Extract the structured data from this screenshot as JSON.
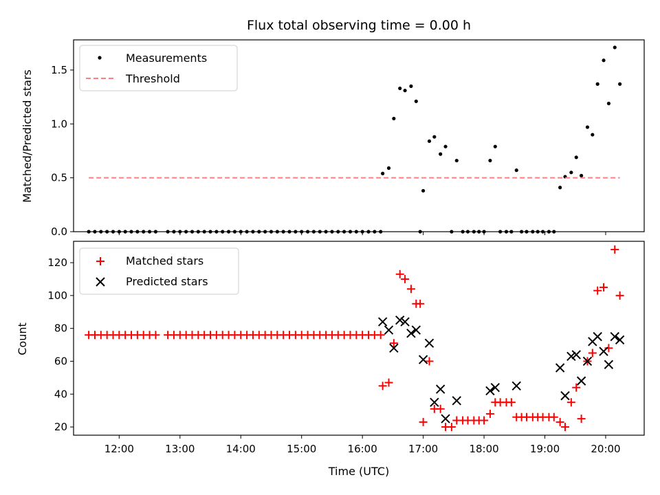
{
  "chart_data": {
    "title": "Flux total observing time = 0.00 h",
    "xlabel": "Time (UTC)",
    "x_tick_labels": [
      "12:00",
      "13:00",
      "14:00",
      "15:00",
      "16:00",
      "17:00",
      "18:00",
      "19:00",
      "20:00"
    ],
    "xlim": [
      "11:15",
      "20:38"
    ],
    "panels": [
      {
        "type": "scatter",
        "ylabel": "Matched/Predicted stars",
        "ylim": [
          0,
          1.78
        ],
        "y_tick_labels": [
          "0.0",
          "0.5",
          "1.0",
          "1.5"
        ],
        "legend_position": "top-left",
        "series": [
          {
            "name": "Measurements",
            "marker": "dot",
            "color": "#000000",
            "points": [
              [
                "11:30",
                0
              ],
              [
                "11:36",
                0
              ],
              [
                "11:42",
                0
              ],
              [
                "11:48",
                0
              ],
              [
                "11:54",
                0
              ],
              [
                "12:00",
                0
              ],
              [
                "12:06",
                0
              ],
              [
                "12:12",
                0
              ],
              [
                "12:18",
                0
              ],
              [
                "12:24",
                0
              ],
              [
                "12:30",
                0
              ],
              [
                "12:36",
                0
              ],
              [
                "12:48",
                0
              ],
              [
                "12:54",
                0
              ],
              [
                "13:00",
                0
              ],
              [
                "13:06",
                0
              ],
              [
                "13:12",
                0
              ],
              [
                "13:18",
                0
              ],
              [
                "13:24",
                0
              ],
              [
                "13:30",
                0
              ],
              [
                "13:36",
                0
              ],
              [
                "13:42",
                0
              ],
              [
                "13:48",
                0
              ],
              [
                "13:54",
                0
              ],
              [
                "14:00",
                0
              ],
              [
                "14:06",
                0
              ],
              [
                "14:12",
                0
              ],
              [
                "14:18",
                0
              ],
              [
                "14:24",
                0
              ],
              [
                "14:30",
                0
              ],
              [
                "14:36",
                0
              ],
              [
                "14:42",
                0
              ],
              [
                "14:48",
                0
              ],
              [
                "14:54",
                0
              ],
              [
                "15:00",
                0
              ],
              [
                "15:06",
                0
              ],
              [
                "15:12",
                0
              ],
              [
                "15:18",
                0
              ],
              [
                "15:24",
                0
              ],
              [
                "15:30",
                0
              ],
              [
                "15:36",
                0
              ],
              [
                "15:42",
                0
              ],
              [
                "15:48",
                0
              ],
              [
                "15:54",
                0
              ],
              [
                "16:00",
                0
              ],
              [
                "16:06",
                0
              ],
              [
                "16:12",
                0
              ],
              [
                "16:18",
                0
              ],
              [
                "16:20",
                0.54
              ],
              [
                "16:26",
                0.59
              ],
              [
                "16:31",
                1.05
              ],
              [
                "16:37",
                1.33
              ],
              [
                "16:42",
                1.31
              ],
              [
                "16:48",
                1.35
              ],
              [
                "16:53",
                1.21
              ],
              [
                "16:57",
                0
              ],
              [
                "17:00",
                0.38
              ],
              [
                "17:06",
                0.84
              ],
              [
                "17:11",
                0.88
              ],
              [
                "17:17",
                0.72
              ],
              [
                "17:22",
                0.79
              ],
              [
                "17:28",
                0
              ],
              [
                "17:33",
                0.66
              ],
              [
                "17:39",
                0
              ],
              [
                "17:44",
                0
              ],
              [
                "17:50",
                0
              ],
              [
                "17:55",
                0
              ],
              [
                "18:00",
                0
              ],
              [
                "18:06",
                0.66
              ],
              [
                "18:11",
                0.79
              ],
              [
                "18:16",
                0
              ],
              [
                "18:22",
                0
              ],
              [
                "18:27",
                0
              ],
              [
                "18:32",
                0.57
              ],
              [
                "18:37",
                0
              ],
              [
                "18:42",
                0
              ],
              [
                "18:48",
                0
              ],
              [
                "18:53",
                0
              ],
              [
                "18:58",
                0
              ],
              [
                "19:04",
                0
              ],
              [
                "19:09",
                0
              ],
              [
                "19:15",
                0.41
              ],
              [
                "19:20",
                0.51
              ],
              [
                "19:26",
                0.55
              ],
              [
                "19:31",
                0.69
              ],
              [
                "19:36",
                0.52
              ],
              [
                "19:42",
                0.97
              ],
              [
                "19:47",
                0.9
              ],
              [
                "19:52",
                1.37
              ],
              [
                "19:58",
                1.59
              ],
              [
                "20:03",
                1.19
              ],
              [
                "20:09",
                1.71
              ],
              [
                "20:14",
                1.37
              ]
            ]
          },
          {
            "name": "Threshold",
            "marker": "dashed-line",
            "color": "#ff7f7f",
            "points": [
              [
                "11:30",
                0.5
              ],
              [
                "20:14",
                0.5
              ]
            ]
          }
        ]
      },
      {
        "type": "scatter",
        "ylabel": "Count",
        "ylim": [
          15,
          133
        ],
        "y_tick_labels": [
          "20",
          "40",
          "60",
          "80",
          "100",
          "120"
        ],
        "legend_position": "top-left",
        "series": [
          {
            "name": "Matched stars",
            "marker": "plus",
            "color": "#ff0000",
            "points": [
              [
                "11:30",
                76
              ],
              [
                "11:36",
                76
              ],
              [
                "11:42",
                76
              ],
              [
                "11:48",
                76
              ],
              [
                "11:54",
                76
              ],
              [
                "12:00",
                76
              ],
              [
                "12:06",
                76
              ],
              [
                "12:12",
                76
              ],
              [
                "12:18",
                76
              ],
              [
                "12:24",
                76
              ],
              [
                "12:30",
                76
              ],
              [
                "12:36",
                76
              ],
              [
                "12:48",
                76
              ],
              [
                "12:54",
                76
              ],
              [
                "13:00",
                76
              ],
              [
                "13:06",
                76
              ],
              [
                "13:12",
                76
              ],
              [
                "13:18",
                76
              ],
              [
                "13:24",
                76
              ],
              [
                "13:30",
                76
              ],
              [
                "13:36",
                76
              ],
              [
                "13:42",
                76
              ],
              [
                "13:48",
                76
              ],
              [
                "13:54",
                76
              ],
              [
                "14:00",
                76
              ],
              [
                "14:06",
                76
              ],
              [
                "14:12",
                76
              ],
              [
                "14:18",
                76
              ],
              [
                "14:24",
                76
              ],
              [
                "14:30",
                76
              ],
              [
                "14:36",
                76
              ],
              [
                "14:42",
                76
              ],
              [
                "14:48",
                76
              ],
              [
                "14:54",
                76
              ],
              [
                "15:00",
                76
              ],
              [
                "15:06",
                76
              ],
              [
                "15:12",
                76
              ],
              [
                "15:18",
                76
              ],
              [
                "15:24",
                76
              ],
              [
                "15:30",
                76
              ],
              [
                "15:36",
                76
              ],
              [
                "15:42",
                76
              ],
              [
                "15:48",
                76
              ],
              [
                "15:54",
                76
              ],
              [
                "16:00",
                76
              ],
              [
                "16:06",
                76
              ],
              [
                "16:12",
                76
              ],
              [
                "16:18",
                76
              ],
              [
                "16:20",
                45
              ],
              [
                "16:26",
                47
              ],
              [
                "16:31",
                71
              ],
              [
                "16:37",
                113
              ],
              [
                "16:42",
                110
              ],
              [
                "16:48",
                104
              ],
              [
                "16:53",
                95
              ],
              [
                "16:57",
                95
              ],
              [
                "17:00",
                23
              ],
              [
                "17:06",
                60
              ],
              [
                "17:11",
                31
              ],
              [
                "17:17",
                31
              ],
              [
                "17:22",
                20
              ],
              [
                "17:28",
                20
              ],
              [
                "17:33",
                24
              ],
              [
                "17:39",
                24
              ],
              [
                "17:44",
                24
              ],
              [
                "17:50",
                24
              ],
              [
                "17:55",
                24
              ],
              [
                "18:00",
                24
              ],
              [
                "18:06",
                28
              ],
              [
                "18:11",
                35
              ],
              [
                "18:16",
                35
              ],
              [
                "18:22",
                35
              ],
              [
                "18:27",
                35
              ],
              [
                "18:32",
                26
              ],
              [
                "18:37",
                26
              ],
              [
                "18:42",
                26
              ],
              [
                "18:48",
                26
              ],
              [
                "18:53",
                26
              ],
              [
                "18:58",
                26
              ],
              [
                "19:04",
                26
              ],
              [
                "19:09",
                26
              ],
              [
                "19:15",
                23
              ],
              [
                "19:20",
                20
              ],
              [
                "19:26",
                35
              ],
              [
                "19:31",
                44
              ],
              [
                "19:36",
                25
              ],
              [
                "19:42",
                60
              ],
              [
                "19:47",
                65
              ],
              [
                "19:52",
                103
              ],
              [
                "19:58",
                105
              ],
              [
                "20:03",
                68
              ],
              [
                "20:09",
                128
              ],
              [
                "20:14",
                100
              ]
            ]
          },
          {
            "name": "Predicted stars",
            "marker": "x",
            "color": "#000000",
            "points": [
              [
                "16:20",
                84
              ],
              [
                "16:26",
                79
              ],
              [
                "16:31",
                68
              ],
              [
                "16:37",
                85
              ],
              [
                "16:42",
                84
              ],
              [
                "16:48",
                77
              ],
              [
                "16:53",
                79
              ],
              [
                "17:00",
                61
              ],
              [
                "17:06",
                71
              ],
              [
                "17:11",
                35
              ],
              [
                "17:17",
                43
              ],
              [
                "17:22",
                25
              ],
              [
                "17:33",
                36
              ],
              [
                "18:06",
                42
              ],
              [
                "18:11",
                44
              ],
              [
                "18:32",
                45
              ],
              [
                "19:15",
                56
              ],
              [
                "19:20",
                39
              ],
              [
                "19:26",
                63
              ],
              [
                "19:31",
                64
              ],
              [
                "19:36",
                48
              ],
              [
                "19:42",
                60
              ],
              [
                "19:47",
                72
              ],
              [
                "19:52",
                75
              ],
              [
                "19:58",
                66
              ],
              [
                "20:03",
                58
              ],
              [
                "20:09",
                75
              ],
              [
                "20:14",
                73
              ]
            ]
          }
        ]
      }
    ]
  }
}
